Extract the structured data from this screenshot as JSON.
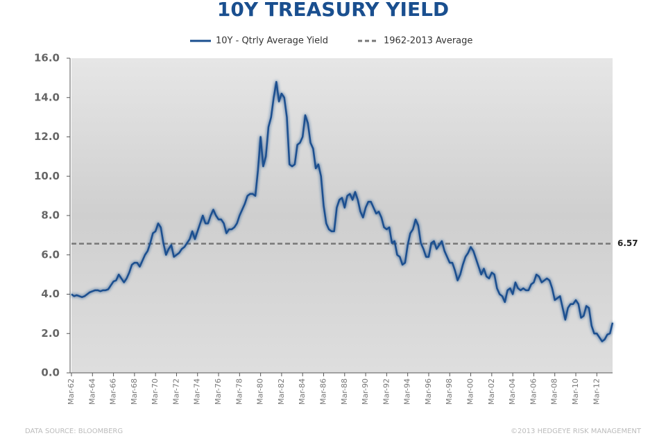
{
  "chart_data": {
    "type": "line",
    "title": "10Y TREASURY YIELD",
    "categories": [
      "Mar-62",
      null,
      null,
      null,
      null,
      null,
      null,
      null,
      "Mar-64",
      null,
      null,
      null,
      null,
      null,
      null,
      null,
      "Mar-66",
      null,
      null,
      null,
      null,
      null,
      null,
      null,
      "Mar-68",
      null,
      null,
      null,
      null,
      null,
      null,
      null,
      "Mar-70",
      null,
      null,
      null,
      null,
      null,
      null,
      null,
      "Mar-72",
      null,
      null,
      null,
      null,
      null,
      null,
      null,
      "Mar-74",
      null,
      null,
      null,
      null,
      null,
      null,
      null,
      "Mar-76",
      null,
      null,
      null,
      null,
      null,
      null,
      null,
      "Mar-78",
      null,
      null,
      null,
      null,
      null,
      null,
      null,
      "Mar-80",
      null,
      null,
      null,
      null,
      null,
      null,
      null,
      "Mar-82",
      null,
      null,
      null,
      null,
      null,
      null,
      null,
      "Mar-84",
      null,
      null,
      null,
      null,
      null,
      null,
      null,
      "Mar-86",
      null,
      null,
      null,
      null,
      null,
      null,
      null,
      "Mar-88",
      null,
      null,
      null,
      null,
      null,
      null,
      null,
      "Mar-90",
      null,
      null,
      null,
      null,
      null,
      null,
      null,
      "Mar-92",
      null,
      null,
      null,
      null,
      null,
      null,
      null,
      "Mar-94",
      null,
      null,
      null,
      null,
      null,
      null,
      null,
      "Mar-96",
      null,
      null,
      null,
      null,
      null,
      null,
      null,
      "Mar-98",
      null,
      null,
      null,
      null,
      null,
      null,
      null,
      "Mar-00",
      null,
      null,
      null,
      null,
      null,
      null,
      null,
      "Mar-02",
      null,
      null,
      null,
      null,
      null,
      null,
      null,
      "Mar-04",
      null,
      null,
      null,
      null,
      null,
      null,
      null,
      "Mar-06",
      null,
      null,
      null,
      null,
      null,
      null,
      null,
      "Mar-08",
      null,
      null,
      null,
      null,
      null,
      null,
      null,
      "Mar-10",
      null,
      null,
      null,
      null,
      null,
      null,
      null,
      "Mar-12",
      null,
      null,
      null,
      null,
      null,
      null
    ],
    "series": [
      {
        "name": "10Y - Qtrly Average Yield",
        "color": "#1a4f8f",
        "values": [
          4.0,
          3.9,
          3.95,
          3.9,
          3.85,
          3.9,
          4.0,
          4.1,
          4.15,
          4.2,
          4.2,
          4.15,
          4.2,
          4.2,
          4.25,
          4.45,
          4.65,
          4.7,
          5.0,
          4.8,
          4.6,
          4.8,
          5.1,
          5.5,
          5.6,
          5.6,
          5.4,
          5.7,
          6.0,
          6.2,
          6.6,
          7.1,
          7.2,
          7.6,
          7.4,
          6.6,
          6.0,
          6.3,
          6.5,
          5.9,
          6.0,
          6.1,
          6.3,
          6.4,
          6.6,
          6.8,
          7.2,
          6.8,
          7.2,
          7.6,
          8.0,
          7.6,
          7.6,
          8.0,
          8.3,
          8.0,
          7.8,
          7.8,
          7.6,
          7.1,
          7.3,
          7.3,
          7.4,
          7.6,
          8.0,
          8.3,
          8.6,
          9.0,
          9.1,
          9.1,
          9.0,
          10.3,
          12.0,
          10.5,
          11.0,
          12.5,
          13.0,
          14.0,
          14.8,
          13.8,
          14.2,
          14.0,
          13.0,
          10.6,
          10.5,
          10.6,
          11.6,
          11.7,
          12.0,
          13.1,
          12.7,
          11.7,
          11.4,
          10.4,
          10.6,
          10.0,
          8.5,
          7.6,
          7.3,
          7.2,
          7.2,
          8.4,
          8.8,
          8.9,
          8.4,
          9.0,
          9.1,
          8.8,
          9.2,
          8.8,
          8.2,
          7.9,
          8.4,
          8.7,
          8.7,
          8.4,
          8.1,
          8.2,
          7.9,
          7.4,
          7.3,
          7.4,
          6.6,
          6.7,
          6.0,
          5.9,
          5.5,
          5.6,
          6.5,
          7.1,
          7.3,
          7.8,
          7.5,
          6.6,
          6.3,
          5.9,
          5.9,
          6.6,
          6.7,
          6.3,
          6.5,
          6.7,
          6.2,
          5.9,
          5.6,
          5.6,
          5.2,
          4.7,
          5.0,
          5.5,
          5.9,
          6.1,
          6.4,
          6.2,
          5.8,
          5.4,
          5.0,
          5.3,
          4.9,
          4.8,
          5.1,
          5.0,
          4.3,
          4.0,
          3.9,
          3.6,
          4.2,
          4.3,
          4.0,
          4.6,
          4.3,
          4.2,
          4.3,
          4.2,
          4.2,
          4.5,
          4.6,
          5.0,
          4.9,
          4.6,
          4.7,
          4.8,
          4.7,
          4.3,
          3.7,
          3.8,
          3.9,
          3.3,
          2.7,
          3.3,
          3.5,
          3.5,
          3.7,
          3.5,
          2.8,
          2.9,
          3.4,
          3.3,
          2.4,
          2.0,
          2.0,
          1.8,
          1.6,
          1.7,
          1.95,
          2.0,
          2.55
        ]
      }
    ],
    "average": {
      "name": "1962-2013 Average",
      "color": "#777777",
      "value": 6.57
    },
    "ylim": [
      0,
      16
    ],
    "yticks": [
      {
        "value": 0,
        "label": "0.0"
      },
      {
        "value": 2,
        "label": "2.0"
      },
      {
        "value": 4,
        "label": "4.0"
      },
      {
        "value": 6,
        "label": "6.0"
      },
      {
        "value": 8,
        "label": "8.0"
      },
      {
        "value": 10,
        "label": "10.0"
      },
      {
        "value": 12,
        "label": "12.0"
      },
      {
        "value": 14,
        "label": "14.0"
      },
      {
        "value": 16,
        "label": "16.0"
      }
    ],
    "source": "DATA SOURCE: BLOOMBERG",
    "copyright": "©2013 HEDGEYE RISK MANAGEMENT"
  }
}
